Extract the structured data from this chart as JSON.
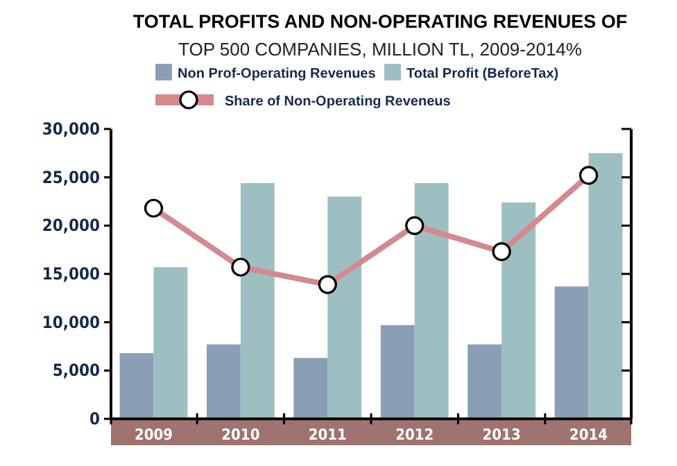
{
  "chart_data": {
    "type": "bar",
    "title": "TOTAL PROFITS AND NON-OPERATING REVENUES OF",
    "subtitle": "TOP 500 COMPANIES, MILLION TL, 2009-2014%",
    "categories": [
      "2009",
      "2010",
      "2011",
      "2012",
      "2013",
      "2014"
    ],
    "series": [
      {
        "name": "Non Prof-Operating Revenues",
        "color": "#8a9fb5",
        "values": [
          6800,
          7700,
          6300,
          9700,
          7700,
          13700
        ]
      },
      {
        "name": "Total Profit (BeforeTax)",
        "color": "#9dbfc2",
        "values": [
          15700,
          24400,
          23000,
          24400,
          22400,
          27500
        ]
      },
      {
        "name": "Share of Non-Operating Reveneus",
        "type": "line",
        "color": "#d4898f",
        "marker": "circle",
        "values": [
          21800,
          15700,
          13900,
          20000,
          17300,
          25200
        ]
      }
    ],
    "ylim": [
      0,
      30000
    ],
    "yticks": [
      {
        "value": 0,
        "label": "0"
      },
      {
        "value": 5000,
        "label": "5,000"
      },
      {
        "value": 10000,
        "label": "10,000"
      },
      {
        "value": 15000,
        "label": "15,000"
      },
      {
        "value": 20000,
        "label": "20,000"
      },
      {
        "value": 25000,
        "label": "25,000"
      },
      {
        "value": 30000,
        "label": "30,000"
      }
    ],
    "legend": "top",
    "grid": false
  }
}
